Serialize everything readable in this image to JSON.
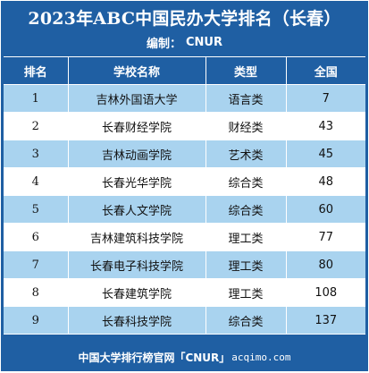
{
  "title": "2023年ABC中国民办大学排名（长春）",
  "subtitle": {
    "label": "编制：",
    "value": "CNUR"
  },
  "table": {
    "headers": [
      "排名",
      "学校名称",
      "类型",
      "全国"
    ],
    "rows": [
      {
        "rank": "1",
        "name": "吉林外国语大学",
        "type": "语言类",
        "national": "7"
      },
      {
        "rank": "2",
        "name": "长春财经学院",
        "type": "财经类",
        "national": "43"
      },
      {
        "rank": "3",
        "name": "吉林动画学院",
        "type": "艺术类",
        "national": "45"
      },
      {
        "rank": "4",
        "name": "长春光华学院",
        "type": "综合类",
        "national": "48"
      },
      {
        "rank": "5",
        "name": "长春人文学院",
        "type": "综合类",
        "national": "60"
      },
      {
        "rank": "6",
        "name": "吉林建筑科技学院",
        "type": "理工类",
        "national": "77"
      },
      {
        "rank": "7",
        "name": "长春电子科技学院",
        "type": "理工类",
        "national": "80"
      },
      {
        "rank": "8",
        "name": "长春建筑学院",
        "type": "理工类",
        "national": "108"
      },
      {
        "rank": "9",
        "name": "长春科技学院",
        "type": "综合类",
        "national": "137"
      }
    ]
  },
  "footer": {
    "text": "中国大学排行榜官网「CNUR」",
    "site": "acqimo.com"
  },
  "colors": {
    "header_blue": "#1f5fa3",
    "row_light_blue": "#a9d3ef",
    "row_white": "#ffffff"
  }
}
